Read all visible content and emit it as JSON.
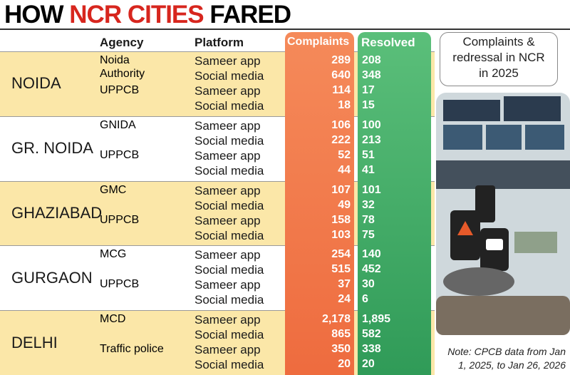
{
  "title_parts": [
    "HOW",
    "NCR CITIES",
    "FARED"
  ],
  "table": {
    "headers": {
      "agency": "Agency",
      "platform": "Platform",
      "complaints": "Complaints",
      "resolved": "Resolved"
    },
    "groups": [
      {
        "city": "NOIDA",
        "agencies": [
          {
            "name": "Noida Authority",
            "rows": [
              {
                "platform": "Sameer app",
                "complaints": "289",
                "resolved": "208"
              },
              {
                "platform": "Social media",
                "complaints": "640",
                "resolved": "348"
              }
            ]
          },
          {
            "name": "UPPCB",
            "rows": [
              {
                "platform": "Sameer app",
                "complaints": "114",
                "resolved": "17"
              },
              {
                "platform": "Social media",
                "complaints": "18",
                "resolved": "15"
              }
            ]
          }
        ]
      },
      {
        "city": "GR. NOIDA",
        "agencies": [
          {
            "name": "GNIDA",
            "rows": [
              {
                "platform": "Sameer app",
                "complaints": "106",
                "resolved": "100"
              },
              {
                "platform": "Social media",
                "complaints": "222",
                "resolved": "213"
              }
            ]
          },
          {
            "name": "UPPCB",
            "rows": [
              {
                "platform": "Sameer app",
                "complaints": "52",
                "resolved": "51"
              },
              {
                "platform": "Social media",
                "complaints": "44",
                "resolved": "41"
              }
            ]
          }
        ]
      },
      {
        "city": "GHAZIABAD",
        "agencies": [
          {
            "name": "GMC",
            "rows": [
              {
                "platform": "Sameer app",
                "complaints": "107",
                "resolved": "101"
              },
              {
                "platform": "Social media",
                "complaints": "49",
                "resolved": "32"
              }
            ]
          },
          {
            "name": "UPPCB",
            "rows": [
              {
                "platform": "Sameer app",
                "complaints": "158",
                "resolved": "78"
              },
              {
                "platform": "Social media",
                "complaints": "103",
                "resolved": "75"
              }
            ]
          }
        ]
      },
      {
        "city": "GURGAON",
        "agencies": [
          {
            "name": "MCG",
            "rows": [
              {
                "platform": "Sameer app",
                "complaints": "254",
                "resolved": "140"
              },
              {
                "platform": "Social media",
                "complaints": "515",
                "resolved": "452"
              }
            ]
          },
          {
            "name": "UPPCB",
            "rows": [
              {
                "platform": "Sameer app",
                "complaints": "37",
                "resolved": "30"
              },
              {
                "platform": "Social media",
                "complaints": "24",
                "resolved": "6"
              }
            ]
          }
        ]
      },
      {
        "city": "DELHI",
        "agencies": [
          {
            "name": "MCD",
            "rows": [
              {
                "platform": "Sameer app",
                "complaints": "2,178",
                "resolved": "1,895"
              },
              {
                "platform": "Social media",
                "complaints": "865",
                "resolved": "582"
              }
            ]
          },
          {
            "name": "Traffic police",
            "rows": [
              {
                "platform": "Sameer app",
                "complaints": "350",
                "resolved": "338"
              },
              {
                "platform": "Social media",
                "complaints": "20",
                "resolved": "20"
              }
            ]
          }
        ]
      }
    ]
  },
  "side_box": "Complaints & redressal in NCR in 2025",
  "note_lines": [
    "Note: CPCB data from Jan",
    "1, 2025, to Jan 26, 2026"
  ]
}
